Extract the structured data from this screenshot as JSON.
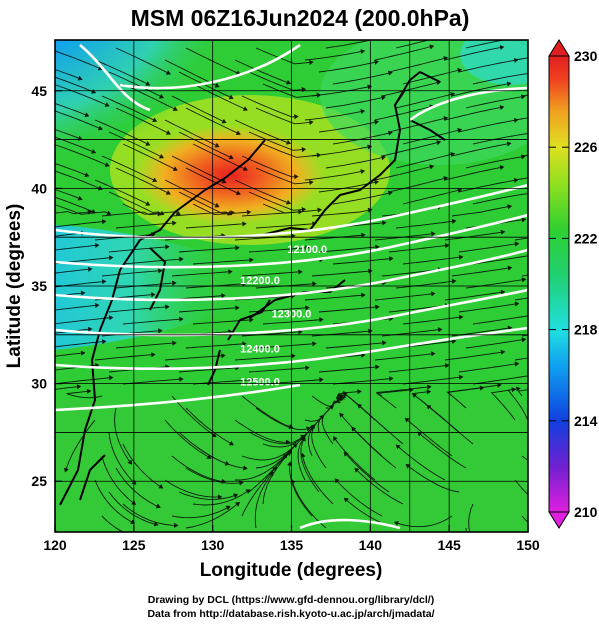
{
  "title": "MSM 06Z16Jun2024 (200.0hPa)",
  "x_axis": {
    "label": "Longitude (degrees)",
    "ticks": [
      "120",
      "125",
      "130",
      "135",
      "140",
      "145",
      "150"
    ],
    "range": [
      120,
      150
    ]
  },
  "y_axis": {
    "label": "Latitude  (degrees)",
    "ticks": [
      "25",
      "30",
      "35",
      "40",
      "45"
    ],
    "range": [
      22.4,
      47.6
    ]
  },
  "colorbar": {
    "ticks": [
      "230",
      "226",
      "222",
      "218",
      "214",
      "210"
    ],
    "range": [
      210,
      230
    ],
    "colors": [
      "#e020e0",
      "#7020d0",
      "#1040e0",
      "#10a0f0",
      "#20e0e0",
      "#20d070",
      "#30d030",
      "#90e020",
      "#e0e020",
      "#f0a020",
      "#f04020",
      "#e02020"
    ]
  },
  "contours": [
    {
      "label": "12100.0",
      "lat": 36.9
    },
    {
      "label": "12200.0",
      "lat": 35.3
    },
    {
      "label": "12300.0",
      "lat": 33.6
    },
    {
      "label": "12400.0",
      "lat": 31.8
    },
    {
      "label": "12500.0",
      "lat": 30.1
    }
  ],
  "credits": {
    "line1": "Drawing by DCL (https://www.gfd-dennou.org/library/dcl/)",
    "line2": "Data from http://database.rish.kyoto-u.ac.jp/arch/jmadata/"
  }
}
